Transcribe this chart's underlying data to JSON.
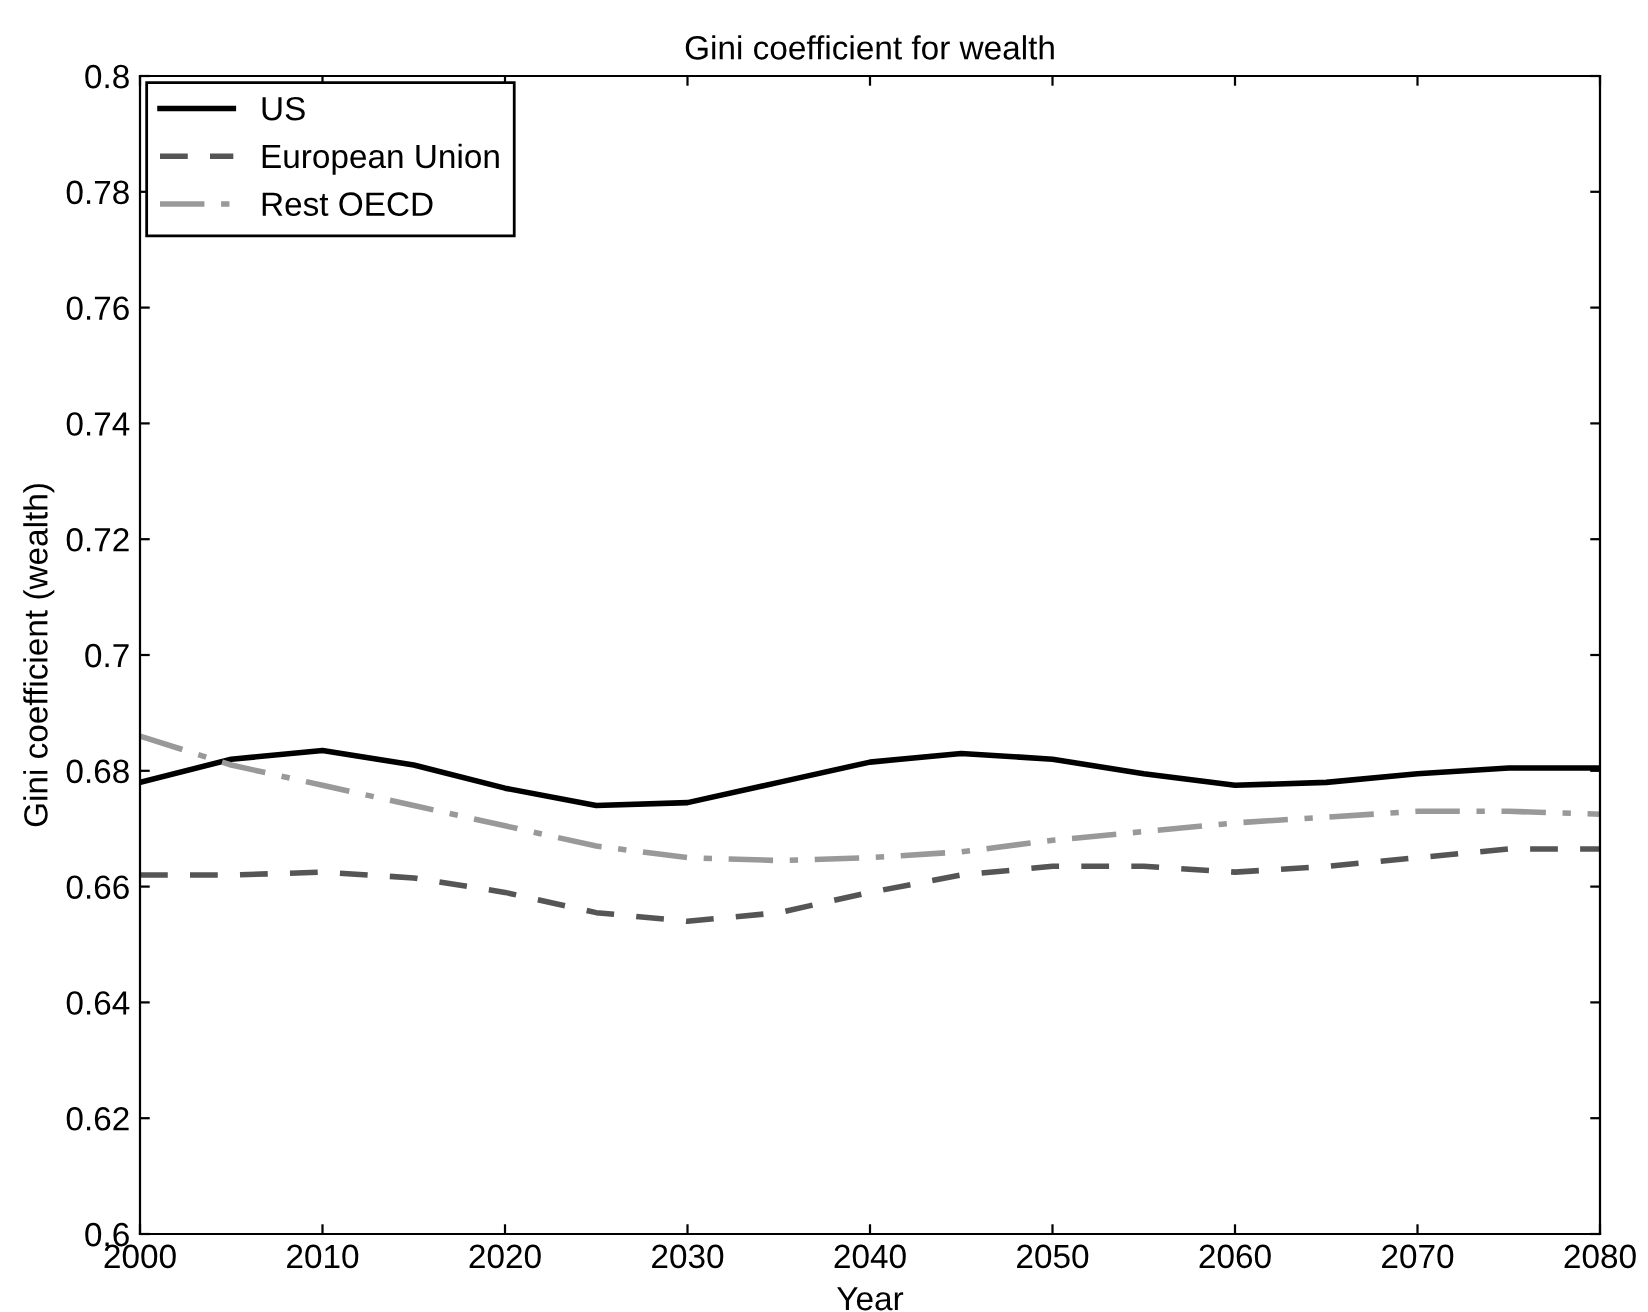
{
  "chart_data": {
    "type": "line",
    "title": "Gini coefficient for wealth",
    "xlabel": "Year",
    "ylabel": "Gini coefficient (wealth)",
    "x": [
      2000,
      2005,
      2010,
      2015,
      2020,
      2025,
      2030,
      2035,
      2040,
      2045,
      2050,
      2055,
      2060,
      2065,
      2070,
      2075,
      2080
    ],
    "series": [
      {
        "name": "US",
        "color": "#000000",
        "line_style": "solid",
        "values": [
          0.678,
          0.682,
          0.6835,
          0.681,
          0.677,
          0.674,
          0.6745,
          0.678,
          0.6815,
          0.683,
          0.682,
          0.6795,
          0.6775,
          0.678,
          0.6795,
          0.6805,
          0.6805
        ]
      },
      {
        "name": "European Union",
        "color": "#555555",
        "line_style": "dashed",
        "values": [
          0.662,
          0.662,
          0.6625,
          0.6615,
          0.659,
          0.6555,
          0.654,
          0.6555,
          0.659,
          0.662,
          0.6635,
          0.6635,
          0.6625,
          0.6635,
          0.665,
          0.6665,
          0.6665
        ]
      },
      {
        "name": "Rest OECD",
        "color": "#999999",
        "line_style": "dashdot",
        "values": [
          0.686,
          0.681,
          0.6775,
          0.674,
          0.6705,
          0.667,
          0.665,
          0.6645,
          0.665,
          0.666,
          0.668,
          0.6695,
          0.671,
          0.672,
          0.673,
          0.673,
          0.6725
        ]
      }
    ],
    "xlim": [
      2000,
      2080
    ],
    "xticks": [
      2000,
      2010,
      2020,
      2030,
      2040,
      2050,
      2060,
      2070,
      2080
    ],
    "ylim": [
      0.6,
      0.8
    ],
    "yticks": [
      0.6,
      0.62,
      0.64,
      0.66,
      0.68,
      0.7,
      0.72,
      0.74,
      0.76,
      0.78,
      0.8
    ],
    "grid": false,
    "legend": "top left"
  }
}
